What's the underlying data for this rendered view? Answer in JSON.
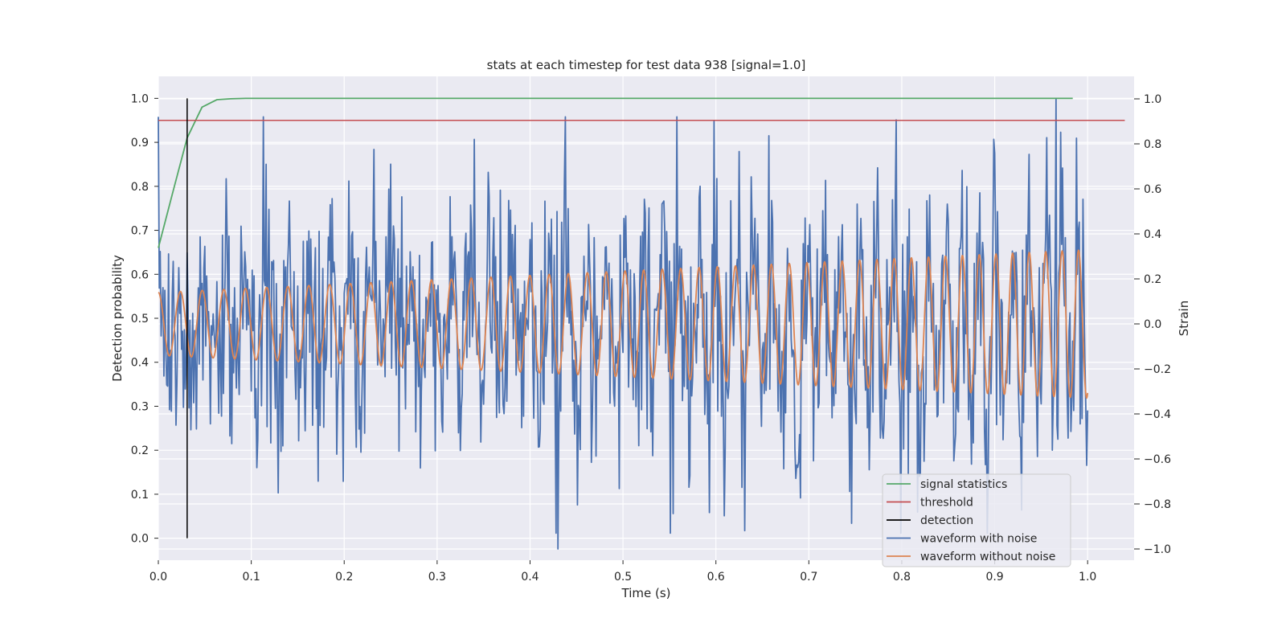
{
  "chart_data": {
    "type": "line",
    "title": "stats at each timestep for test data 938 [signal=1.0]",
    "xlabel": "Time (s)",
    "ylabel_left": "Detection probability",
    "ylabel_right": "Strain",
    "xlim": [
      0.0,
      1.05
    ],
    "ylim_left": [
      -0.05,
      1.05
    ],
    "ylim_right": [
      -1.05,
      1.1
    ],
    "xticks": [
      0.0,
      0.1,
      0.2,
      0.3,
      0.4,
      0.5,
      0.6,
      0.7,
      0.8,
      0.9,
      1.0
    ],
    "xtick_labels": [
      "0.0",
      "0.1",
      "0.2",
      "0.3",
      "0.4",
      "0.5",
      "0.6",
      "0.7",
      "0.8",
      "0.9",
      "1.0"
    ],
    "yticks_left": [
      0.0,
      0.1,
      0.2,
      0.3,
      0.4,
      0.5,
      0.6,
      0.7,
      0.8,
      0.9,
      1.0
    ],
    "ytick_labels_left": [
      "0.0",
      "0.1",
      "0.2",
      "0.3",
      "0.4",
      "0.5",
      "0.6",
      "0.7",
      "0.8",
      "0.9",
      "1.0"
    ],
    "yticks_right": [
      -1.0,
      -0.8,
      -0.6,
      -0.4,
      -0.2,
      0.0,
      0.2,
      0.4,
      0.6,
      0.8,
      1.0
    ],
    "ytick_labels_right": [
      "−1.0",
      "−0.8",
      "−0.6",
      "−0.4",
      "−0.2",
      "0.0",
      "0.2",
      "0.4",
      "0.6",
      "0.8",
      "1.0"
    ],
    "grid": true,
    "legend_position": "lower-right",
    "background_color": "#eaeaf2",
    "series": [
      {
        "name": "signal statistics",
        "axis": "left",
        "color": "#55a868",
        "x": [
          0.0,
          0.016,
          0.031,
          0.047,
          0.063,
          0.078,
          0.094,
          0.2,
          0.4,
          0.6,
          0.8,
          0.984
        ],
        "y": [
          0.66,
          0.79,
          0.91,
          0.98,
          0.997,
          0.999,
          1.0,
          1.0,
          1.0,
          1.0,
          1.0,
          1.0
        ]
      },
      {
        "name": "threshold",
        "axis": "left",
        "color": "#c44e52",
        "x": [
          0.0,
          1.04
        ],
        "y": [
          0.95,
          0.95
        ]
      },
      {
        "name": "detection",
        "axis": "left",
        "color": "#000000",
        "x": [
          0.031,
          0.031
        ],
        "y": [
          0.0,
          1.0
        ]
      },
      {
        "name": "waveform with noise",
        "axis": "right",
        "color": "#4c72b0",
        "sample_count": 1000,
        "x_start": 0.0,
        "x_end": 1.0,
        "approx_range": [
          -1.0,
          1.0
        ],
        "y_notable": [
          {
            "x": 0.43,
            "y": -1.0
          },
          {
            "x": 0.966,
            "y": 1.0
          }
        ]
      },
      {
        "name": "waveform without noise",
        "axis": "right",
        "color": "#dd8452",
        "x_start": 0.0,
        "x_end": 1.0,
        "cycles": 42,
        "amplitude_start": 0.14,
        "amplitude_end": 0.33
      }
    ]
  }
}
